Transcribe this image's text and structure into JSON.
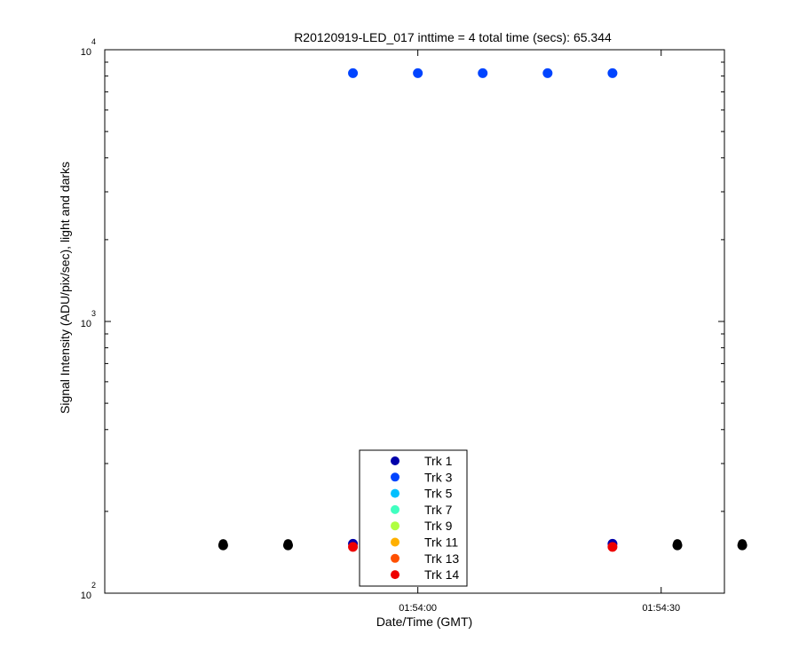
{
  "chart_data": {
    "type": "scatter",
    "title": "R20120919-LED_017 inttime = 4 total time (secs): 65.344",
    "xlabel": "Date/Time (GMT)",
    "ylabel": "Signal Intensity (ADU/pix/sec), light and darks",
    "x_unit": "seconds after 01:53:30 GMT",
    "xlim": [
      -8.6,
      67.8
    ],
    "ylim": [
      100,
      10000
    ],
    "yscale": "log",
    "x_ticks": [
      {
        "value": 30,
        "label": "01:54:00"
      },
      {
        "value": 60,
        "label": "01:54:30"
      }
    ],
    "y_ticks": [
      {
        "value": 100,
        "base": "10",
        "exp": "2"
      },
      {
        "value": 1000,
        "base": "10",
        "exp": "3"
      },
      {
        "value": 10000,
        "base": "10",
        "exp": "4"
      }
    ],
    "grid": false,
    "legend_position": "bottom-center",
    "series": [
      {
        "name": "Trk 1",
        "color": "#0000aa",
        "x": [
          22,
          30,
          54
        ],
        "y": [
          152,
          152,
          152
        ]
      },
      {
        "name": "Trk 3",
        "color": "#0044ff",
        "x": [
          22,
          30,
          38,
          46,
          54
        ],
        "y": [
          8200,
          8200,
          8200,
          8200,
          8200
        ]
      },
      {
        "name": "Trk 5",
        "color": "#00c0ff",
        "x": [],
        "y": []
      },
      {
        "name": "Trk 7",
        "color": "#40ffc0",
        "x": [],
        "y": []
      },
      {
        "name": "Trk 9",
        "color": "#b0ff40",
        "x": [],
        "y": []
      },
      {
        "name": "Trk 11",
        "color": "#ffb000",
        "x": [],
        "y": []
      },
      {
        "name": "Trk 13",
        "color": "#ff5000",
        "x": [],
        "y": []
      },
      {
        "name": "Trk 14",
        "color": "#ee0000",
        "x": [
          22,
          30,
          54
        ],
        "y": [
          148,
          148,
          148
        ]
      }
    ],
    "dark_frames": {
      "color": "#000000",
      "x": [
        6,
        14,
        62,
        70
      ],
      "y": [
        150,
        150,
        150,
        150
      ]
    }
  }
}
